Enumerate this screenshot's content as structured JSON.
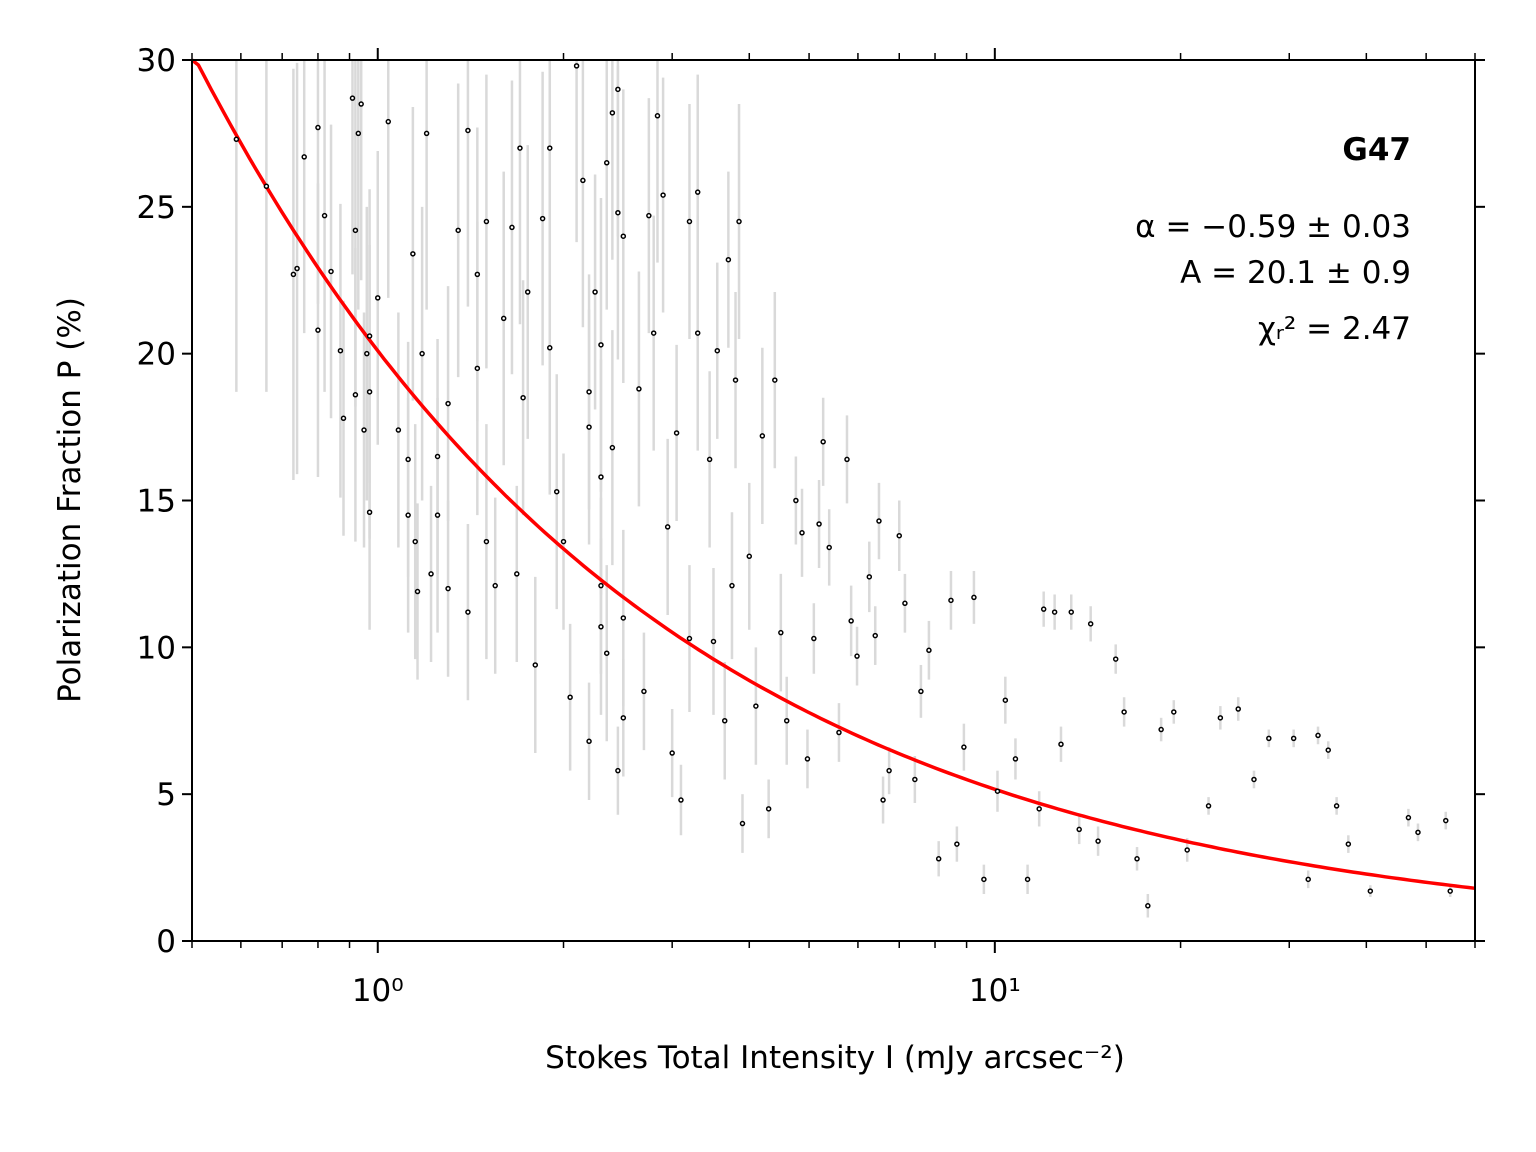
{
  "chart_data": {
    "type": "scatter",
    "xlabel": "Stokes Total Intensity I (mJy arcsec⁻²)",
    "ylabel": "Polarization Fraction P (%)",
    "annotations": [
      "G47",
      "α = −0.59 ± 0.03",
      "A = 20.1 ± 0.9",
      "χᵣ² = 2.47"
    ],
    "xscale": "log",
    "xlim": [
      0.5,
      60
    ],
    "ylim": [
      0,
      30
    ],
    "xticks": [
      {
        "value": 1,
        "label": "10⁰"
      },
      {
        "value": 10,
        "label": "10¹"
      }
    ],
    "xminorticks": [
      0.5,
      0.6,
      0.7,
      0.8,
      0.9,
      2,
      3,
      4,
      5,
      6,
      7,
      8,
      9,
      20,
      30,
      40,
      50,
      60
    ],
    "yticks": [
      0,
      5,
      10,
      15,
      20,
      25,
      30
    ],
    "color": "#000000",
    "error_color": "#d9d9d9",
    "fit": {
      "amplitude": 20.1,
      "exponent": -0.59,
      "color": "#ff0000"
    },
    "x": [
      0.59,
      0.66,
      0.73,
      0.74,
      0.76,
      0.8,
      0.8,
      0.82,
      0.84,
      0.87,
      0.88,
      0.91,
      0.92,
      0.92,
      0.93,
      0.94,
      0.95,
      0.96,
      0.97,
      0.97,
      0.97,
      1.0,
      1.04,
      1.08,
      1.12,
      1.12,
      1.14,
      1.15,
      1.16,
      1.18,
      1.2,
      1.22,
      1.25,
      1.25,
      1.3,
      1.3,
      1.35,
      1.4,
      1.4,
      1.45,
      1.45,
      1.5,
      1.5,
      1.55,
      1.6,
      1.65,
      1.68,
      1.7,
      1.72,
      1.75,
      1.8,
      1.85,
      1.9,
      1.9,
      1.95,
      2.0,
      2.05,
      2.1,
      2.15,
      2.2,
      2.3,
      2.3,
      2.35,
      2.45,
      2.5,
      2.2,
      2.3,
      2.2,
      2.25,
      2.3,
      2.35,
      2.4,
      2.45,
      2.45,
      2.5,
      2.5,
      2.4,
      2.65,
      2.7,
      2.84,
      2.8,
      2.75,
      2.9,
      2.95,
      3.0,
      3.05,
      3.1,
      3.2,
      3.2,
      3.3,
      3.3,
      3.45,
      3.5,
      3.55,
      3.65,
      3.7,
      3.75,
      3.8,
      3.85,
      3.9,
      4.0,
      4.1,
      4.2,
      4.3,
      4.4,
      4.5,
      4.6,
      4.76,
      4.87,
      4.97,
      5.09,
      5.19,
      5.27,
      5.39,
      5.59,
      5.76,
      5.85,
      5.98,
      6.26,
      6.4,
      6.49,
      6.59,
      6.74,
      7.0,
      7.15,
      7.42,
      7.59,
      7.82,
      8.11,
      8.49,
      8.68,
      8.91,
      9.25,
      9.6,
      10.1,
      10.4,
      10.8,
      11.3,
      11.8,
      12.0,
      12.5,
      12.8,
      13.3,
      13.7,
      14.3,
      14.7,
      15.7,
      16.2,
      17.0,
      17.7,
      18.6,
      19.5,
      20.5,
      22.2,
      23.2,
      24.8,
      26.3,
      27.8,
      30.5,
      32.2,
      33.4,
      34.7,
      35.8,
      37.4,
      40.6,
      46.8,
      48.5,
      53.8,
      54.7
    ],
    "values": [
      27.3,
      25.7,
      22.7,
      22.9,
      26.7,
      27.7,
      20.8,
      24.7,
      22.8,
      20.1,
      17.8,
      28.7,
      24.2,
      18.6,
      27.5,
      28.5,
      17.4,
      20.0,
      18.7,
      14.6,
      20.6,
      21.9,
      27.9,
      17.4,
      16.4,
      14.5,
      23.4,
      13.6,
      11.9,
      20.0,
      27.5,
      12.5,
      16.5,
      14.5,
      18.3,
      12.0,
      24.2,
      27.6,
      11.2,
      22.7,
      19.5,
      24.5,
      13.6,
      12.1,
      21.2,
      24.3,
      12.5,
      27.0,
      18.5,
      22.1,
      9.4,
      24.6,
      27.0,
      20.2,
      15.3,
      13.6,
      8.3,
      29.8,
      25.9,
      18.7,
      20.3,
      12.1,
      9.8,
      24.8,
      7.6,
      17.5,
      10.7,
      6.8,
      22.1,
      15.8,
      26.5,
      28.2,
      29.0,
      5.8,
      24.0,
      11.0,
      16.8,
      18.8,
      8.5,
      28.1,
      20.7,
      24.7,
      25.4,
      14.1,
      6.4,
      17.3,
      4.8,
      24.5,
      10.3,
      25.5,
      20.7,
      16.4,
      10.2,
      20.1,
      7.5,
      23.2,
      12.1,
      19.1,
      24.5,
      4.0,
      13.1,
      8.0,
      17.2,
      4.5,
      19.1,
      10.5,
      7.5,
      15.0,
      13.9,
      6.2,
      10.3,
      14.2,
      17.0,
      13.4,
      7.1,
      16.4,
      10.9,
      9.7,
      12.4,
      10.4,
      14.3,
      4.8,
      5.8,
      13.8,
      11.5,
      5.5,
      8.5,
      9.9,
      2.8,
      11.6,
      3.3,
      6.6,
      11.7,
      2.1,
      5.1,
      8.2,
      6.2,
      2.1,
      4.5,
      11.3,
      11.2,
      6.7,
      11.2,
      3.8,
      10.8,
      3.4,
      9.6,
      7.8,
      2.8,
      1.2,
      7.2,
      7.8,
      3.1,
      4.6,
      7.6,
      7.9,
      5.5,
      6.9,
      6.9,
      2.1,
      7.0,
      6.5,
      4.6,
      3.3,
      1.7,
      4.2,
      3.7,
      4.1,
      1.7
    ],
    "errors": [
      8.6,
      7,
      7,
      7,
      6,
      6,
      5,
      6,
      5,
      5,
      4,
      6,
      6,
      5,
      6,
      6,
      4,
      5,
      5,
      4,
      5,
      5,
      6,
      4,
      4,
      4,
      5,
      4,
      3,
      5,
      6,
      3,
      4,
      4,
      4,
      3,
      5,
      6,
      3,
      5,
      5,
      5,
      4,
      3,
      5,
      5,
      3,
      6,
      4,
      5,
      3,
      5,
      6,
      5,
      4,
      3,
      2.5,
      6,
      5,
      4,
      5,
      3,
      3,
      5,
      2,
      4,
      3,
      2,
      4,
      4,
      5,
      5,
      5,
      1.5,
      5,
      3,
      4,
      4,
      2,
      5,
      4,
      4,
      4,
      3,
      1.5,
      3,
      1.2,
      4,
      2.5,
      4,
      4,
      3,
      2.5,
      3,
      2,
      3,
      2.5,
      3,
      4,
      1,
      2.5,
      2,
      3,
      1,
      3,
      2,
      1.5,
      1.5,
      1.5,
      1,
      1.2,
      1.5,
      1.5,
      1.3,
      1,
      1.5,
      1.2,
      1,
      1.2,
      1,
      1.3,
      0.8,
      0.8,
      1.2,
      1,
      0.8,
      0.9,
      1,
      0.6,
      1,
      0.6,
      0.8,
      0.9,
      0.5,
      0.7,
      0.8,
      0.7,
      0.5,
      0.6,
      0.6,
      0.6,
      0.6,
      0.6,
      0.5,
      0.6,
      0.5,
      0.5,
      0.5,
      0.4,
      0.4,
      0.4,
      0.4,
      0.4,
      0.3,
      0.4,
      0.4,
      0.3,
      0.3,
      0.3,
      0.3,
      0.3,
      0.3,
      0.3,
      0.3,
      0.2,
      0.3,
      0.3,
      0.3,
      0.2
    ]
  }
}
